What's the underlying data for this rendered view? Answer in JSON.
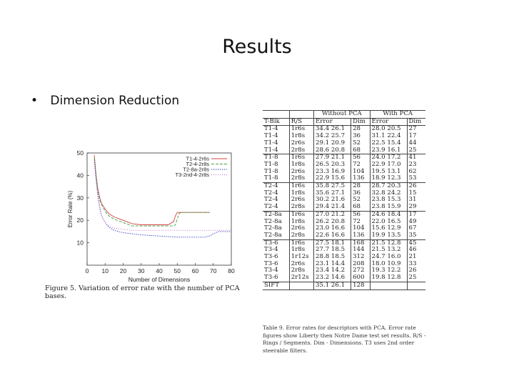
{
  "slide": {
    "title": "Results",
    "bullet": "Dimension Reduction"
  },
  "figure": {
    "caption": "Figure 5. Variation of error rate with the number of PCA bases."
  },
  "chart_data": {
    "type": "line",
    "title": "",
    "xlabel": "Number of Dimensions",
    "ylabel": "Error Rate (%)",
    "xlim": [
      0,
      80
    ],
    "ylim": [
      0,
      50
    ],
    "xticks": [
      0,
      10,
      20,
      30,
      40,
      50,
      60,
      70,
      80
    ],
    "yticks": [
      10,
      20,
      30,
      40,
      50
    ],
    "legend_position": "top-right",
    "series": [
      {
        "name": "T1-4-2r6s",
        "color": "#d04040",
        "dash": "solid",
        "points": [
          [
            4,
            49
          ],
          [
            5,
            40
          ],
          [
            6,
            34
          ],
          [
            7,
            30
          ],
          [
            8,
            27.5
          ],
          [
            10,
            25
          ],
          [
            12,
            23
          ],
          [
            15,
            21.5
          ],
          [
            20,
            20
          ],
          [
            25,
            18.5
          ],
          [
            30,
            18
          ],
          [
            40,
            18
          ],
          [
            45,
            18
          ],
          [
            48,
            19.5
          ],
          [
            49,
            22
          ],
          [
            50,
            23.5
          ],
          [
            55,
            23.5
          ],
          [
            60,
            23.5
          ],
          [
            65,
            23.5
          ],
          [
            68,
            23.5
          ]
        ]
      },
      {
        "name": "T2-4-2r8s",
        "color": "#40a040",
        "dash": "4,2",
        "points": [
          [
            4,
            48
          ],
          [
            5,
            40
          ],
          [
            6,
            33
          ],
          [
            7,
            29
          ],
          [
            8,
            27
          ],
          [
            10,
            24
          ],
          [
            12,
            22
          ],
          [
            15,
            20.5
          ],
          [
            20,
            19
          ],
          [
            25,
            17.5
          ],
          [
            30,
            17.5
          ],
          [
            40,
            17.5
          ],
          [
            48,
            17.5
          ],
          [
            49,
            18
          ],
          [
            51,
            23
          ],
          [
            52,
            23.5
          ],
          [
            60,
            23.5
          ],
          [
            68,
            23.5
          ]
        ]
      },
      {
        "name": "T2-8a-2r8s",
        "color": "#3040c0",
        "dash": "1.5,1.5",
        "points": [
          [
            4,
            47
          ],
          [
            5,
            38
          ],
          [
            6,
            31
          ],
          [
            7,
            26
          ],
          [
            8,
            22
          ],
          [
            10,
            19
          ],
          [
            12,
            17
          ],
          [
            15,
            15.5
          ],
          [
            20,
            14.5
          ],
          [
            25,
            14
          ],
          [
            30,
            13.5
          ],
          [
            40,
            13
          ],
          [
            50,
            12.5
          ],
          [
            60,
            12.5
          ],
          [
            65,
            12.5
          ],
          [
            68,
            13
          ],
          [
            70,
            14
          ],
          [
            73,
            15
          ],
          [
            80,
            15
          ]
        ]
      },
      {
        "name": "T3-2nd-4-2r8s",
        "color": "#c060c0",
        "dash": "1,2",
        "points": [
          [
            4,
            46
          ],
          [
            5,
            37
          ],
          [
            6,
            30
          ],
          [
            7,
            25
          ],
          [
            8,
            22
          ],
          [
            10,
            19
          ],
          [
            12,
            17.5
          ],
          [
            15,
            16.5
          ],
          [
            20,
            16
          ],
          [
            25,
            15.5
          ],
          [
            30,
            15.5
          ],
          [
            40,
            15.5
          ],
          [
            50,
            15.5
          ],
          [
            60,
            15.5
          ],
          [
            70,
            15.5
          ],
          [
            80,
            15.5
          ]
        ]
      }
    ]
  },
  "table": {
    "header_top": [
      "",
      "",
      "Without PCA",
      "With PCA"
    ],
    "header_cols": [
      "T-Blk",
      "R/S",
      "Error",
      "Dim",
      "Error",
      "Dim"
    ],
    "groups": [
      [
        [
          "T1-4",
          "1r6s",
          "34.4 26.1",
          "28",
          "28.0 20.5",
          "27"
        ],
        [
          "T1-4",
          "1r8s",
          "34.2 25.7",
          "36",
          "31.1 22.4",
          "17"
        ],
        [
          "T1-4",
          "2r6s",
          "29.1 20.9",
          "52",
          "22.5 15.4",
          "44"
        ],
        [
          "T1-4",
          "2r8s",
          "28.6 20.8",
          "68",
          "23.9 16.1",
          "25"
        ]
      ],
      [
        [
          "T1-8",
          "1r6s",
          "27.9 21.1",
          "56",
          "24.0 17.2",
          "41"
        ],
        [
          "T1-8",
          "1r8s",
          "26.5 20.3",
          "72",
          "22.9 17.0",
          "23"
        ],
        [
          "T1-8",
          "2r6s",
          "23.3 16.9",
          "104",
          "19.5 13.1",
          "62"
        ],
        [
          "T1-8",
          "2r8s",
          "22.9 15.6",
          "136",
          "18.9 12.3",
          "53"
        ]
      ],
      [
        [
          "T2-4",
          "1r6s",
          "35.8 27.5",
          "28",
          "28.7 20.3",
          "26"
        ],
        [
          "T2-4",
          "1r8s",
          "35.6 27.1",
          "36",
          "32.8 24.2",
          "15"
        ],
        [
          "T2-4",
          "2r6s",
          "30.2 21.6",
          "52",
          "23.8 15.3",
          "31"
        ],
        [
          "T2-4",
          "2r8s",
          "29.4 21.4",
          "68",
          "23.8 15.9",
          "29"
        ]
      ],
      [
        [
          "T2-8a",
          "1r6s",
          "27.0 21.2",
          "56",
          "24.6 18.4",
          "17"
        ],
        [
          "T2-8a",
          "1r8s",
          "26.2 20.8",
          "72",
          "22.0 16.5",
          "49"
        ],
        [
          "T2-8a",
          "2r6s",
          "23.0 16.6",
          "104",
          "15.6 12.9",
          "67"
        ],
        [
          "T2-8a",
          "2r8s",
          "22.6 16.6",
          "136",
          "19.9 13.5",
          "35"
        ]
      ],
      [
        [
          "T3-6",
          "1r6s",
          "27.5 18.1",
          "168",
          "21.5 12.8",
          "45"
        ],
        [
          "T3-4",
          "1r8s",
          "27.7 18.5",
          "144",
          "21.5 13.2",
          "46"
        ],
        [
          "T3-6",
          "1r12s",
          "28.8 18.5",
          "312",
          "24.7 16.0",
          "21"
        ],
        [
          "T3-6",
          "2r6s",
          "23.1 14.4",
          "208",
          "18.0 10.9",
          "33"
        ],
        [
          "T3-4",
          "2r8s",
          "23.4 14.2",
          "272",
          "19.3 12.2",
          "26"
        ],
        [
          "T3-6",
          "2r12s",
          "23.2 14.6",
          "600",
          "19.8 12.8",
          "25"
        ]
      ],
      [
        [
          "SIFT",
          "",
          "35.1 26.1",
          "128",
          "",
          ""
        ]
      ]
    ],
    "caption": "Table 9. Error rates for descriptors with PCA. Error rate figures show Liberty then Notre Dame test set results. R/S - Rings / Segments. Dim - Dimensions. T3 uses 2nd order steerable filters."
  }
}
